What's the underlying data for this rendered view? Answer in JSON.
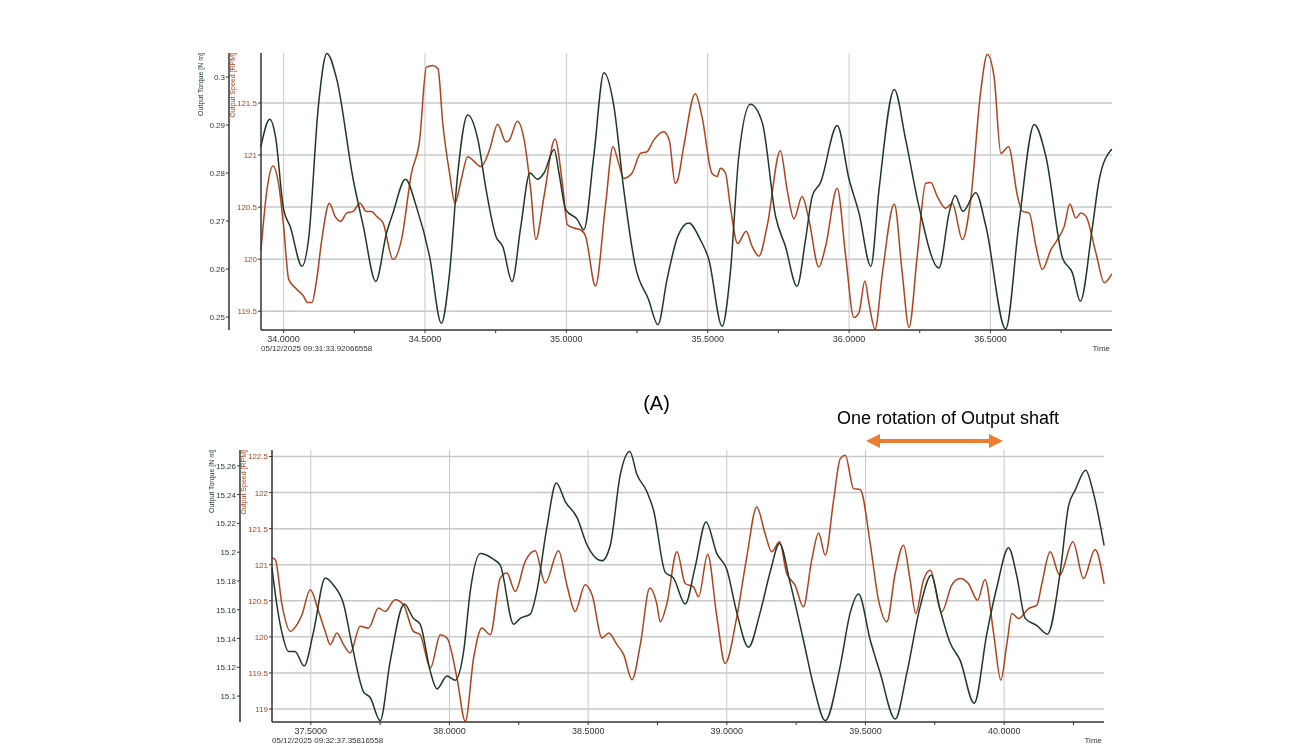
{
  "chart_data": [
    {
      "type": "line",
      "xlabel": "Time",
      "ylabel": "Output Torque [N m]",
      "y2label": "Output Speed [RPM]",
      "grid": true,
      "xlim": [
        33.92,
        36.93
      ],
      "xticks": [
        {
          "value": 34,
          "label": "34.0000"
        },
        {
          "value": 34.25,
          "label": null
        },
        {
          "value": 34.5,
          "label": "34.5000"
        },
        {
          "value": 34.75,
          "label": null
        },
        {
          "value": 35,
          "label": "35.0000"
        },
        {
          "value": 35.25,
          "label": null
        },
        {
          "value": 35.5,
          "label": "35.5000"
        },
        {
          "value": 35.75,
          "label": null
        },
        {
          "value": 36,
          "label": "36.0000"
        },
        {
          "value": 36.25,
          "label": null
        },
        {
          "value": 36.5,
          "label": "36.5000"
        },
        {
          "value": 36.75,
          "label": null
        }
      ],
      "ylim": [
        0.2473,
        0.305
      ],
      "yticks": [
        0.25,
        0.26,
        0.27,
        0.28,
        0.29,
        0.3
      ],
      "y2lim": [
        119.32,
        121.98
      ],
      "y2ticks": [
        119.5,
        120,
        120.5,
        121,
        121.5
      ],
      "annotations": [
        "05/12/2025 09:31:33.92066558",
        "(A)"
      ],
      "series": [
        {
          "color": "#b0421e",
          "axis": "y2",
          "x": [
            33.92,
            33.941,
            33.962,
            33.982,
            34.0,
            34.018,
            34.047,
            34.07,
            34.085,
            34.1,
            34.117,
            34.135,
            34.162,
            34.182,
            34.202,
            34.223,
            34.246,
            34.27,
            34.293,
            34.311,
            34.329,
            34.352,
            34.387,
            34.417,
            34.452,
            34.481,
            34.505,
            34.528,
            34.546,
            34.563,
            34.587,
            34.606,
            34.628,
            34.651,
            34.669,
            34.698,
            34.728,
            34.757,
            34.786,
            34.798,
            34.827,
            34.851,
            34.874,
            34.892,
            34.921,
            34.96,
            34.986,
            35.004,
            35.027,
            35.05,
            35.068,
            35.103,
            35.138,
            35.165,
            35.185,
            35.203,
            35.232,
            35.262,
            35.285,
            35.309,
            35.344,
            35.364,
            35.385,
            35.394,
            35.415,
            35.456,
            35.48,
            35.515,
            35.533,
            35.545,
            35.563,
            35.58,
            35.606,
            35.636,
            35.657,
            35.681,
            35.71,
            35.757,
            35.781,
            35.805,
            35.834,
            35.858,
            35.893,
            35.917,
            35.958,
            35.988,
            36.017,
            36.035,
            36.056,
            36.07,
            36.092,
            36.118,
            36.16,
            36.188,
            36.212,
            36.241,
            36.271,
            36.289,
            36.312,
            36.342,
            36.365,
            36.401,
            36.43,
            36.466,
            36.489,
            36.513,
            36.537,
            36.564,
            36.596,
            36.613,
            36.637,
            36.661,
            36.684,
            36.714,
            36.737,
            36.761,
            36.781,
            36.802,
            36.82,
            36.838,
            36.873,
            36.903,
            36.928
          ],
          "values": [
            120.092,
            120.666,
            120.895,
            120.729,
            120.315,
            119.806,
            119.71,
            119.647,
            119.583,
            119.583,
            119.806,
            120.188,
            120.538,
            120.411,
            120.363,
            120.443,
            120.459,
            120.538,
            120.459,
            120.459,
            120.411,
            120.347,
            119.997,
            120.188,
            120.825,
            121.143,
            121.844,
            121.86,
            121.828,
            121.303,
            120.825,
            120.538,
            120.761,
            120.984,
            120.952,
            120.889,
            121.048,
            121.296,
            121.127,
            121.143,
            121.325,
            121.143,
            120.666,
            120.188,
            120.602,
            121.153,
            120.729,
            120.331,
            120.299,
            120.283,
            120.22,
            119.742,
            120.506,
            121.08,
            120.92,
            120.777,
            120.825,
            121.016,
            121.032,
            121.143,
            121.223,
            121.143,
            120.729,
            120.761,
            121.08,
            121.589,
            121.366,
            120.825,
            120.793,
            120.873,
            120.825,
            120.506,
            120.15,
            120.268,
            120.124,
            120.029,
            120.315,
            121.041,
            120.666,
            120.389,
            120.602,
            120.379,
            119.924,
            120.124,
            120.682,
            120.029,
            119.439,
            119.487,
            119.79,
            119.583,
            119.33,
            119.869,
            120.529,
            119.869,
            119.344,
            120.029,
            120.729,
            120.736,
            120.602,
            120.49,
            120.538,
            120.188,
            120.57,
            121.621,
            121.965,
            121.748,
            121.016,
            121.08,
            120.602,
            120.459,
            120.443,
            120.124,
            119.901,
            120.092,
            120.188,
            120.315,
            120.529,
            120.395,
            120.443,
            120.411,
            120.061,
            119.774,
            119.854
          ]
        },
        {
          "color": "#1e3a24",
          "axis": "y",
          "x": [
            33.92,
            33.951,
            33.971,
            34.0,
            34.023,
            34.065,
            34.088,
            34.123,
            34.153,
            34.188,
            34.246,
            34.282,
            34.326,
            34.364,
            34.387,
            34.431,
            34.469,
            34.516,
            34.558,
            34.587,
            34.616,
            34.651,
            34.687,
            34.716,
            34.751,
            34.775,
            34.808,
            34.839,
            34.871,
            34.898,
            34.921,
            34.957,
            34.974,
            34.998,
            35.039,
            35.062,
            35.097,
            35.133,
            35.168,
            35.203,
            35.244,
            35.291,
            35.324,
            35.356,
            35.394,
            35.433,
            35.474,
            35.504,
            35.551,
            35.58,
            35.61,
            35.651,
            35.693,
            35.74,
            35.775,
            35.816,
            35.846,
            35.87,
            35.899,
            35.958,
            36.0,
            36.035,
            36.077,
            36.106,
            36.16,
            36.2,
            36.247,
            36.318,
            36.354,
            36.375,
            36.403,
            36.448,
            36.484,
            36.554,
            36.601,
            36.655,
            36.696,
            36.755,
            36.79,
            36.818,
            36.861,
            36.885,
            36.928
          ],
          "values": [
            0.2856,
            0.2912,
            0.2877,
            0.2724,
            0.2689,
            0.2606,
            0.2661,
            0.294,
            0.3049,
            0.2995,
            0.2787,
            0.2689,
            0.2574,
            0.2675,
            0.2717,
            0.2787,
            0.2731,
            0.2627,
            0.2487,
            0.2592,
            0.28,
            0.2921,
            0.287,
            0.2766,
            0.2668,
            0.2647,
            0.2574,
            0.2689,
            0.28,
            0.2787,
            0.28,
            0.2849,
            0.28,
            0.2724,
            0.2703,
            0.2682,
            0.2835,
            0.3009,
            0.294,
            0.2766,
            0.2606,
            0.2536,
            0.2484,
            0.2578,
            0.2668,
            0.2696,
            0.2661,
            0.262,
            0.2481,
            0.2592,
            0.2835,
            0.2943,
            0.2905,
            0.271,
            0.2647,
            0.2564,
            0.2661,
            0.2752,
            0.278,
            0.2899,
            0.2787,
            0.2717,
            0.2606,
            0.2766,
            0.2974,
            0.287,
            0.2731,
            0.2602,
            0.2717,
            0.2753,
            0.272,
            0.2759,
            0.2689,
            0.2475,
            0.2696,
            0.2901,
            0.2835,
            0.2623,
            0.2592,
            0.2533,
            0.2689,
            0.2787,
            0.2849
          ]
        }
      ]
    },
    {
      "type": "line",
      "xlabel": "Time",
      "ylabel": "Output Torque [N m]",
      "y2label": "Output Speed [RPM]",
      "grid": true,
      "xlim": [
        37.36,
        40.36
      ],
      "xticks": [
        {
          "value": 37.5,
          "label": "37.5000"
        },
        {
          "value": 37.75,
          "label": null
        },
        {
          "value": 38,
          "label": "38.0000"
        },
        {
          "value": 38.25,
          "label": null
        },
        {
          "value": 38.5,
          "label": "38.5000"
        },
        {
          "value": 38.75,
          "label": null
        },
        {
          "value": 39,
          "label": "39.0000"
        },
        {
          "value": 39.25,
          "label": null
        },
        {
          "value": 39.5,
          "label": "39.5000"
        },
        {
          "value": 39.75,
          "label": null
        },
        {
          "value": 40,
          "label": "40.0000"
        },
        {
          "value": 40.25,
          "label": null
        }
      ],
      "ylim": [
        15.082,
        15.271
      ],
      "yticks": [
        15.1,
        15.12,
        15.14,
        15.16,
        15.18,
        15.2,
        15.22,
        15.24,
        15.26
      ],
      "y2lim": [
        118.82,
        122.59
      ],
      "y2ticks": [
        119,
        119.5,
        120,
        120.5,
        121,
        121.5,
        122,
        122.5
      ],
      "annotations": [
        "05/12/2025 09:32:37.35816558",
        "One rotation of Output shaft"
      ],
      "series": [
        {
          "color": "#b0421e",
          "axis": "y2",
          "x": [
            37.36,
            37.372,
            37.396,
            37.426,
            37.45,
            37.468,
            37.498,
            37.528,
            37.552,
            37.57,
            37.594,
            37.618,
            37.642,
            37.678,
            37.708,
            37.744,
            37.768,
            37.804,
            37.834,
            37.87,
            37.894,
            37.931,
            37.967,
            37.991,
            38.027,
            38.057,
            38.087,
            38.117,
            38.147,
            38.183,
            38.207,
            38.237,
            38.273,
            38.309,
            38.345,
            38.393,
            38.423,
            38.453,
            38.489,
            38.514,
            38.55,
            38.574,
            38.604,
            38.628,
            38.658,
            38.688,
            38.722,
            38.748,
            38.76,
            38.784,
            38.82,
            38.85,
            38.88,
            38.898,
            38.931,
            38.964,
            38.994,
            39.036,
            39.072,
            39.108,
            39.138,
            39.162,
            39.19,
            39.216,
            39.246,
            39.276,
            39.306,
            39.331,
            39.355,
            39.385,
            39.409,
            39.427,
            39.457,
            39.481,
            39.517,
            39.547,
            39.577,
            39.607,
            39.637,
            39.661,
            39.681,
            39.709,
            39.733,
            39.775,
            39.811,
            39.841,
            39.871,
            39.904,
            39.931,
            39.962,
            39.988,
            40.01,
            40.028,
            40.052,
            40.088,
            40.118,
            40.136,
            40.166,
            40.2,
            40.248,
            40.286,
            40.328,
            40.36
          ],
          "values": [
            121.092,
            121.069,
            120.446,
            120.076,
            120.169,
            120.307,
            120.653,
            120.353,
            120.076,
            119.892,
            120.053,
            119.892,
            119.776,
            120.146,
            120.123,
            120.399,
            120.353,
            120.515,
            120.446,
            120.076,
            120.03,
            119.568,
            120.03,
            119.984,
            119.43,
            118.83,
            119.707,
            120.122,
            120.03,
            120.815,
            120.884,
            120.63,
            121.046,
            121.193,
            120.746,
            121.193,
            120.723,
            120.353,
            120.723,
            120.584,
            119.984,
            120.053,
            119.892,
            119.753,
            119.407,
            119.892,
            120.676,
            120.446,
            120.209,
            120.463,
            121.178,
            120.74,
            120.693,
            120.555,
            121.146,
            120.278,
            119.632,
            120.278,
            121.109,
            121.801,
            121.432,
            121.178,
            121.317,
            120.878,
            120.717,
            120.416,
            121.063,
            121.441,
            121.132,
            121.894,
            122.471,
            122.517,
            122.055,
            122.042,
            121.294,
            120.509,
            120.209,
            120.878,
            121.271,
            120.786,
            120.324,
            120.786,
            120.924,
            120.347,
            120.717,
            120.809,
            120.74,
            120.509,
            120.795,
            120.047,
            119.401,
            119.909,
            120.324,
            120.255,
            120.393,
            120.44,
            120.74,
            121.178,
            120.855,
            121.317,
            120.809,
            121.211,
            120.74
          ]
        },
        {
          "color": "#1e3a24",
          "axis": "y",
          "x": [
            37.36,
            37.377,
            37.401,
            37.419,
            37.443,
            37.476,
            37.51,
            37.552,
            37.582,
            37.618,
            37.648,
            37.69,
            37.714,
            37.75,
            37.786,
            37.837,
            37.87,
            37.894,
            37.931,
            37.955,
            37.991,
            38.021,
            38.051,
            38.075,
            38.111,
            38.159,
            38.183,
            38.231,
            38.255,
            38.291,
            38.315,
            38.351,
            38.385,
            38.418,
            38.46,
            38.496,
            38.55,
            38.58,
            38.616,
            38.65,
            38.676,
            38.712,
            38.736,
            38.778,
            38.808,
            38.85,
            38.886,
            38.925,
            38.964,
            39.0,
            39.036,
            39.078,
            39.12,
            39.156,
            39.19,
            39.228,
            39.276,
            39.313,
            39.355,
            39.409,
            39.445,
            39.475,
            39.517,
            39.553,
            39.607,
            39.649,
            39.697,
            39.737,
            39.769,
            39.805,
            39.841,
            39.892,
            39.938,
            39.974,
            40.016,
            40.046,
            40.076,
            40.118,
            40.156,
            40.202,
            40.232,
            40.256,
            40.294,
            40.322,
            40.36
          ],
          "values": [
            15.189,
            15.164,
            15.14,
            15.131,
            15.131,
            15.121,
            15.145,
            15.182,
            15.177,
            15.164,
            15.136,
            15.103,
            15.099,
            15.083,
            15.124,
            15.164,
            15.154,
            15.15,
            15.117,
            15.105,
            15.114,
            15.111,
            15.131,
            15.173,
            15.199,
            15.195,
            15.191,
            15.15,
            15.154,
            15.157,
            15.173,
            15.217,
            15.248,
            15.235,
            15.224,
            15.205,
            15.194,
            15.205,
            15.254,
            15.27,
            15.254,
            15.242,
            15.229,
            15.186,
            15.182,
            15.164,
            15.19,
            15.221,
            15.199,
            15.188,
            15.158,
            15.134,
            15.158,
            15.186,
            15.206,
            15.179,
            15.139,
            15.107,
            15.083,
            15.121,
            15.158,
            15.171,
            15.139,
            15.116,
            15.084,
            15.116,
            15.162,
            15.184,
            15.16,
            15.137,
            15.125,
            15.095,
            15.144,
            15.176,
            15.203,
            15.183,
            15.154,
            15.149,
            15.143,
            15.186,
            15.232,
            15.243,
            15.257,
            15.241,
            15.205
          ]
        }
      ]
    }
  ]
}
